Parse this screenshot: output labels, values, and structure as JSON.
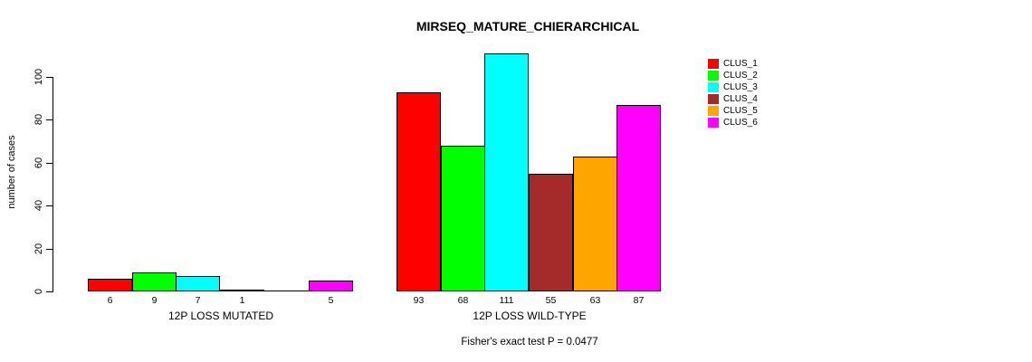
{
  "chart_data": {
    "type": "bar",
    "title": "MIRSEQ_MATURE_CHIERARCHICAL",
    "ylabel": "number of cases",
    "xlabel": "",
    "yticks": [
      "0",
      "20",
      "40",
      "60",
      "80",
      "100"
    ],
    "ytick_values": [
      0,
      20,
      40,
      60,
      80,
      100
    ],
    "ylim": [
      0,
      111
    ],
    "grid": false,
    "legend_position": "right",
    "series": [
      {
        "name": "CLUS_1",
        "color": "#FF0000"
      },
      {
        "name": "CLUS_2",
        "color": "#00FF00"
      },
      {
        "name": "CLUS_3",
        "color": "#00FFFF"
      },
      {
        "name": "CLUS_4",
        "color": "#A52A2A"
      },
      {
        "name": "CLUS_5",
        "color": "#FFA500"
      },
      {
        "name": "CLUS_6",
        "color": "#FF00FF"
      }
    ],
    "groups": [
      {
        "label": "12P LOSS MUTATED",
        "values": [
          6,
          9,
          7,
          1,
          0,
          5
        ],
        "bar_labels": [
          "6",
          "9",
          "7",
          "1",
          "",
          "5"
        ]
      },
      {
        "label": "12P LOSS WILD-TYPE",
        "values": [
          93,
          68,
          111,
          55,
          63,
          87
        ],
        "bar_labels": [
          "93",
          "68",
          "111",
          "55",
          "63",
          "87"
        ]
      }
    ],
    "annotation": "Fisher's exact test P = 0.0477"
  }
}
